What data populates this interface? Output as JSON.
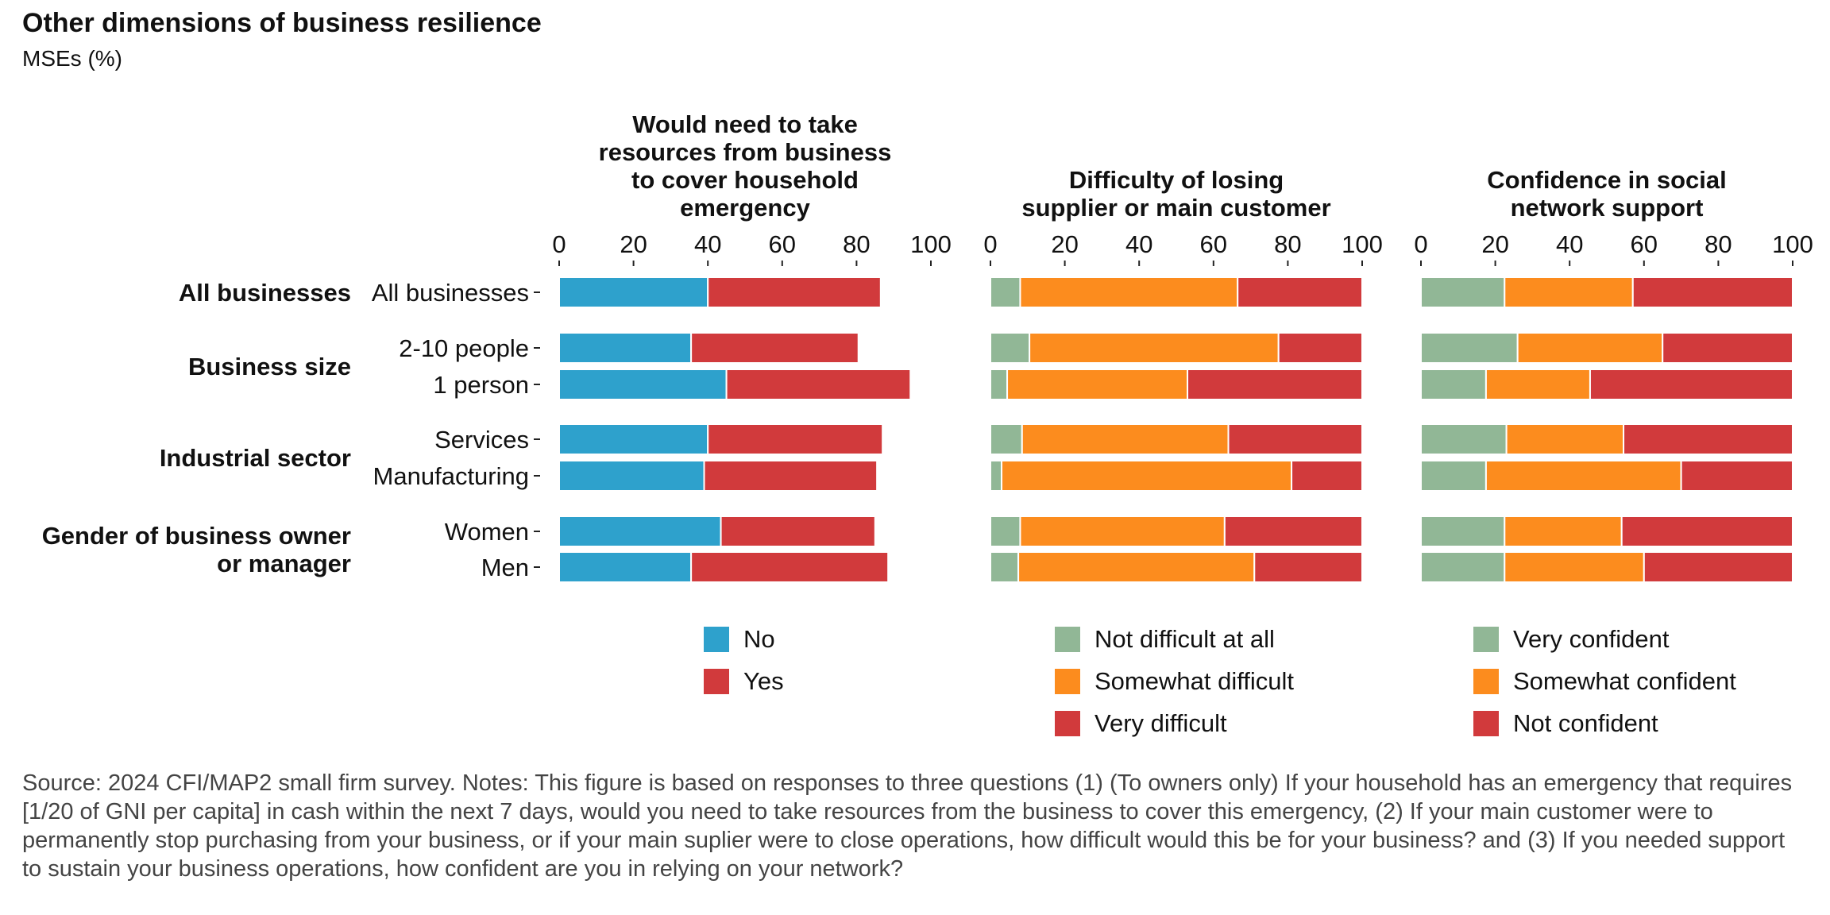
{
  "title": "Other dimensions of business resilience",
  "subtitle": "MSEs (%)",
  "source": "Source: 2024 CFI/MAP2 small firm survey. Notes: This figure is based on responses to three questions (1) (To owners only) If your household has an emergency that requires [1/20 of GNI per capita] in cash within the next 7 days, would you need to take resources from the business to cover this emergency, (2) If your main customer were to permanently stop purchasing from your business, or if your main suplier were to close operations, how difficult would this be for your business? and (3) If you needed support to sustain your business operations, how confident are you in relying on your network?",
  "chart_data": {
    "type": "bar",
    "orientation": "horizontal",
    "stacked": true,
    "title": "Other dimensions of business resilience",
    "subtitle": "MSEs (%)",
    "categories": [
      "All businesses",
      "2-10 people",
      "1 person",
      "Services",
      "Manufacturing",
      "Women",
      "Men"
    ],
    "groups": [
      {
        "label": "All businesses",
        "categories": [
          "All businesses"
        ]
      },
      {
        "label": "Business size",
        "categories": [
          "2-10 people",
          "1 person"
        ]
      },
      {
        "label": "Industrial sector",
        "categories": [
          "Services",
          "Manufacturing"
        ]
      },
      {
        "label": "Gender of business owner\nor manager",
        "categories": [
          "Women",
          "Men"
        ]
      }
    ],
    "xlim": [
      0,
      100
    ],
    "xticks": [
      0,
      20,
      40,
      60,
      80,
      100
    ],
    "grid": false,
    "legend_position": "bottom",
    "panels": [
      {
        "title": "Would need to take\nresources from business\nto cover household\nemergency",
        "series": [
          {
            "name": "No",
            "color": "#2ea1cc",
            "values": [
              40,
              35.5,
              45,
              40,
              39,
              43.5,
              35.5
            ]
          },
          {
            "name": "Yes",
            "color": "#d13a3c",
            "values": [
              46.5,
              45,
              49.5,
              47,
              46.5,
              41.5,
              53
            ]
          }
        ]
      },
      {
        "title": "Difficulty of losing\nsupplier or main customer",
        "series": [
          {
            "name": "Not difficult at all",
            "color": "#91b796",
            "values": [
              8,
              10.5,
              4.5,
              8.5,
              3,
              8,
              7.5
            ]
          },
          {
            "name": "Somewhat difficult",
            "color": "#fc8c1e",
            "values": [
              58.5,
              67,
              48.5,
              55.5,
              78,
              55,
              63.5
            ]
          },
          {
            "name": "Very difficult",
            "color": "#d13a3c",
            "values": [
              33.5,
              22.5,
              47,
              36,
              19,
              37,
              29
            ]
          }
        ]
      },
      {
        "title": "Confidence in social\nnetwork support",
        "series": [
          {
            "name": "Very confident",
            "color": "#91b796",
            "values": [
              22.5,
              26,
              17.5,
              23,
              17.5,
              22.5,
              22.5
            ]
          },
          {
            "name": "Somewhat confident",
            "color": "#fc8c1e",
            "values": [
              34.5,
              39,
              28,
              31.5,
              52.5,
              31.5,
              37.5
            ]
          },
          {
            "name": "Not confident",
            "color": "#d13a3c",
            "values": [
              43,
              35,
              54.5,
              45.5,
              30,
              46,
              40
            ]
          }
        ]
      }
    ]
  }
}
